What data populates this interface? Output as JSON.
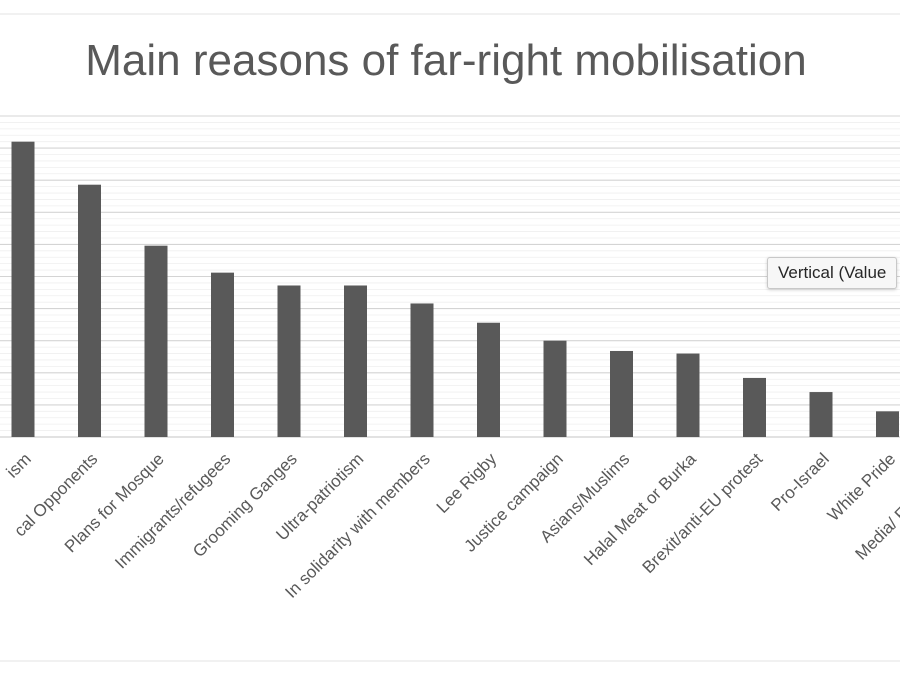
{
  "chart_data": {
    "type": "bar",
    "title": "Main reasons of far-right mobilisation",
    "xlabel": "",
    "ylabel": "",
    "categories": [
      "...ism",
      "...cal Opponents",
      "Plans for Mosque",
      "Immigrants/refugees",
      "Grooming Ganges",
      "Ultra-patriotism",
      "In solidarity with members",
      "Lee Rigby",
      "Justice campaign",
      "Asians/Muslims",
      "Halal Meat or  Burka",
      "Brexit/anti-EU protest",
      "Pro-Israel",
      "White Pride",
      "Media/ Freedom of..."
    ],
    "visible_label_text": [
      "ism",
      "cal Opponents",
      "Plans for Mosque",
      "Immigrants/refugees",
      "Grooming Ganges",
      "Ultra-patriotism",
      "In solidarity with members",
      "Lee Rigby",
      "Justice campaign",
      "Asians/Muslims",
      "Halal Meat or  Burka",
      "Brexit/anti-EU protest",
      "Pro-Israel",
      "White Pride",
      "Media/ Freedom of"
    ],
    "values": [
      46,
      39.3,
      29.8,
      25.6,
      23.6,
      23.6,
      20.8,
      17.8,
      15,
      13.4,
      13,
      9.2,
      7,
      4,
      null
    ],
    "ylim": [
      0,
      50
    ],
    "grid": true,
    "legend": "none",
    "bar_color": "#595959"
  },
  "tooltip": {
    "text": "Vertical (Value"
  }
}
